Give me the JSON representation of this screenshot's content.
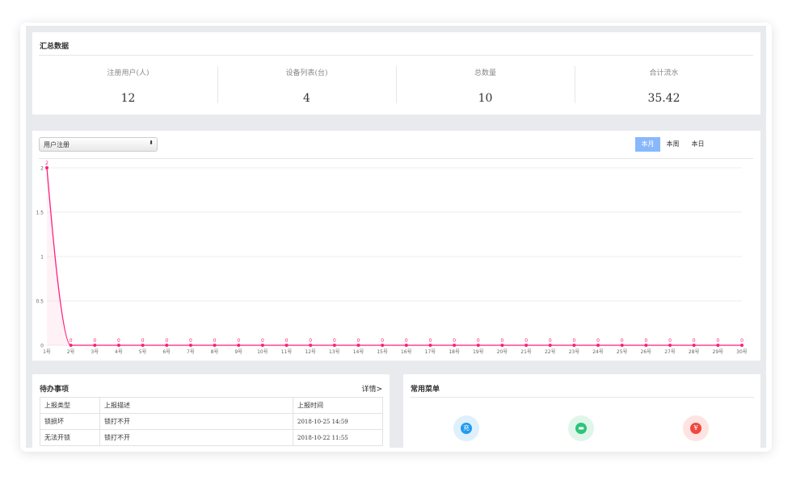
{
  "summary": {
    "title": "汇总数据",
    "stats": [
      {
        "label": "注册用户(人)",
        "value": "12"
      },
      {
        "label": "设备列表(台)",
        "value": "4"
      },
      {
        "label": "总数量",
        "value": "10"
      },
      {
        "label": "合计流水",
        "value": "35.42"
      }
    ]
  },
  "chart_panel": {
    "select_value": "用户注册",
    "tabs": [
      {
        "label": "本月",
        "active": true
      },
      {
        "label": "本周",
        "active": false
      },
      {
        "label": "本日",
        "active": false
      }
    ],
    "accent": "#88b8fc"
  },
  "chart_data": {
    "type": "line",
    "categories": [
      "1号",
      "2号",
      "3号",
      "4号",
      "5号",
      "6号",
      "7号",
      "8号",
      "9号",
      "10号",
      "11号",
      "12号",
      "13号",
      "14号",
      "15号",
      "16号",
      "17号",
      "18号",
      "19号",
      "20号",
      "21号",
      "22号",
      "23号",
      "24号",
      "25号",
      "26号",
      "27号",
      "28号",
      "29号",
      "30号"
    ],
    "values": [
      2,
      0,
      0,
      0,
      0,
      0,
      0,
      0,
      0,
      0,
      0,
      0,
      0,
      0,
      0,
      0,
      0,
      0,
      0,
      0,
      0,
      0,
      0,
      0,
      0,
      0,
      0,
      0,
      0,
      0
    ],
    "yticks": [
      "0",
      "0.5",
      "1",
      "1.5",
      "2"
    ],
    "ylim": [
      0,
      2
    ],
    "grid": true,
    "smooth": true,
    "area": true,
    "data_labels": true,
    "color": "#ff1f7a"
  },
  "todo": {
    "title": "待办事项",
    "detail_link": "详情>",
    "headers": [
      "上报类型",
      "上报描述",
      "上报时间"
    ],
    "rows": [
      [
        "锁损坏",
        "锁打不开",
        "2018-10-25 14:59"
      ],
      [
        "无法开锁",
        "锁打不开",
        "2018-10-22 11:55"
      ]
    ]
  },
  "menu": {
    "title": "常用菜单",
    "items": [
      {
        "icon": "charge-icon",
        "glyph": "充",
        "color": "#1e9bf0",
        "bg": "#dff0fd"
      },
      {
        "icon": "car-icon",
        "glyph": "▬",
        "color": "#2ec47a",
        "bg": "#e0f6ea"
      },
      {
        "icon": "yen-icon",
        "glyph": "¥",
        "color": "#f0483e",
        "bg": "#fde4e2"
      }
    ]
  }
}
